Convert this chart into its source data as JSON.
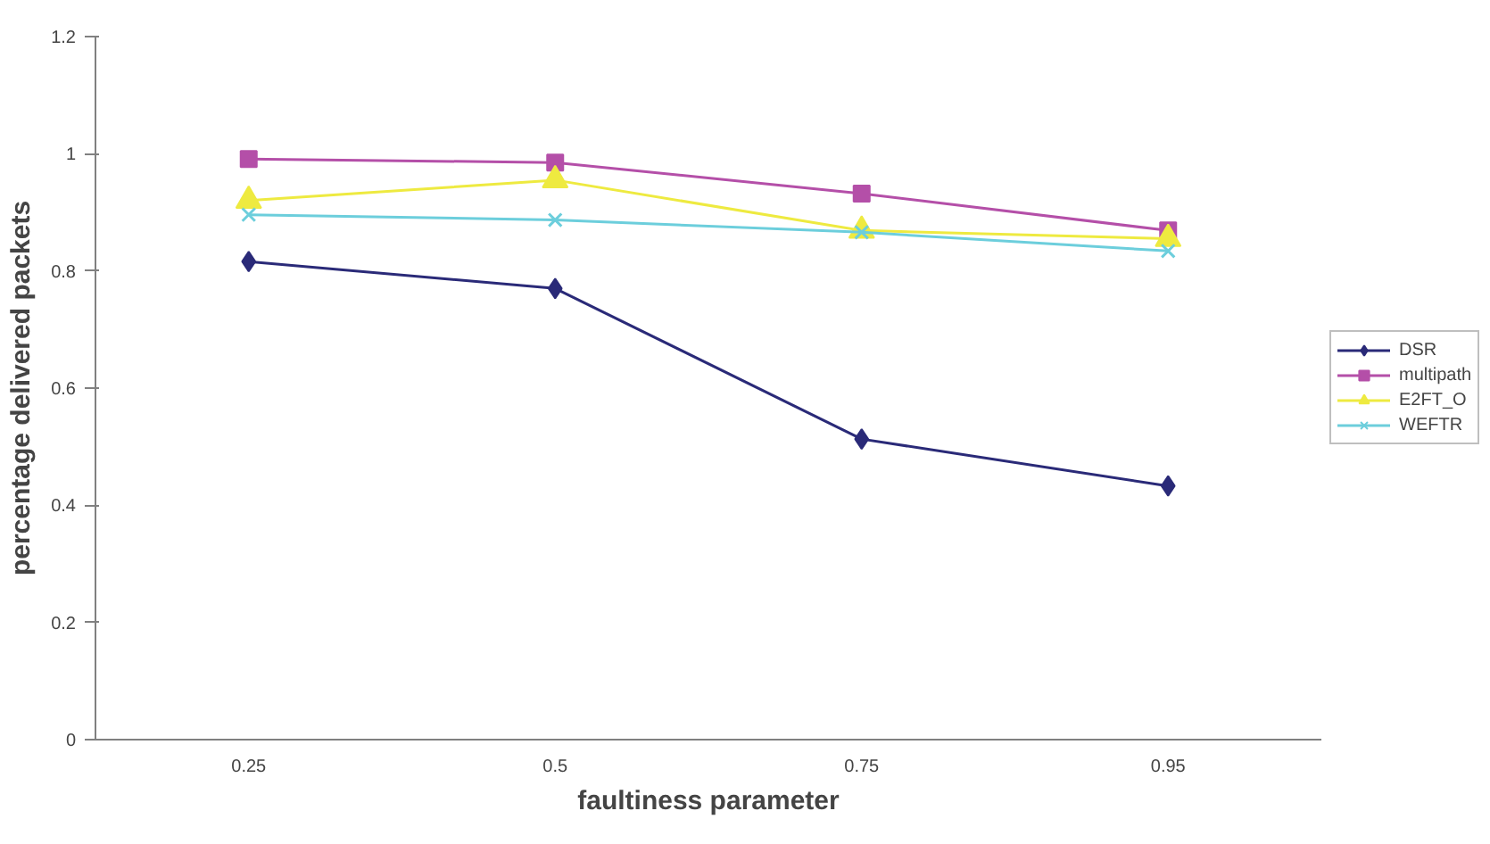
{
  "chart_data": {
    "type": "line",
    "xlabel": "faultiness parameter",
    "ylabel": "percentage delivered packets",
    "categories": [
      "0.25",
      "0.5",
      "0.75",
      "0.95"
    ],
    "series": [
      {
        "name": "DSR",
        "color": "#2a2a78",
        "marker": "diamond",
        "values": [
          0.816,
          0.77,
          0.513,
          0.433
        ]
      },
      {
        "name": "multipath",
        "color": "#b44fa8",
        "marker": "square",
        "values": [
          0.991,
          0.985,
          0.932,
          0.869
        ]
      },
      {
        "name": "E2FT_O",
        "color": "#eeea40",
        "marker": "triangle",
        "values": [
          0.92,
          0.955,
          0.869,
          0.855
        ]
      },
      {
        "name": "WEFTR",
        "color": "#6ccedc",
        "marker": "cross",
        "values": [
          0.896,
          0.887,
          0.866,
          0.834
        ]
      }
    ],
    "ylim": [
      0,
      1.2
    ],
    "yticks": [
      0,
      0.2,
      0.4,
      0.6,
      0.8,
      1,
      1.2
    ],
    "grid": false,
    "legend": "right"
  }
}
